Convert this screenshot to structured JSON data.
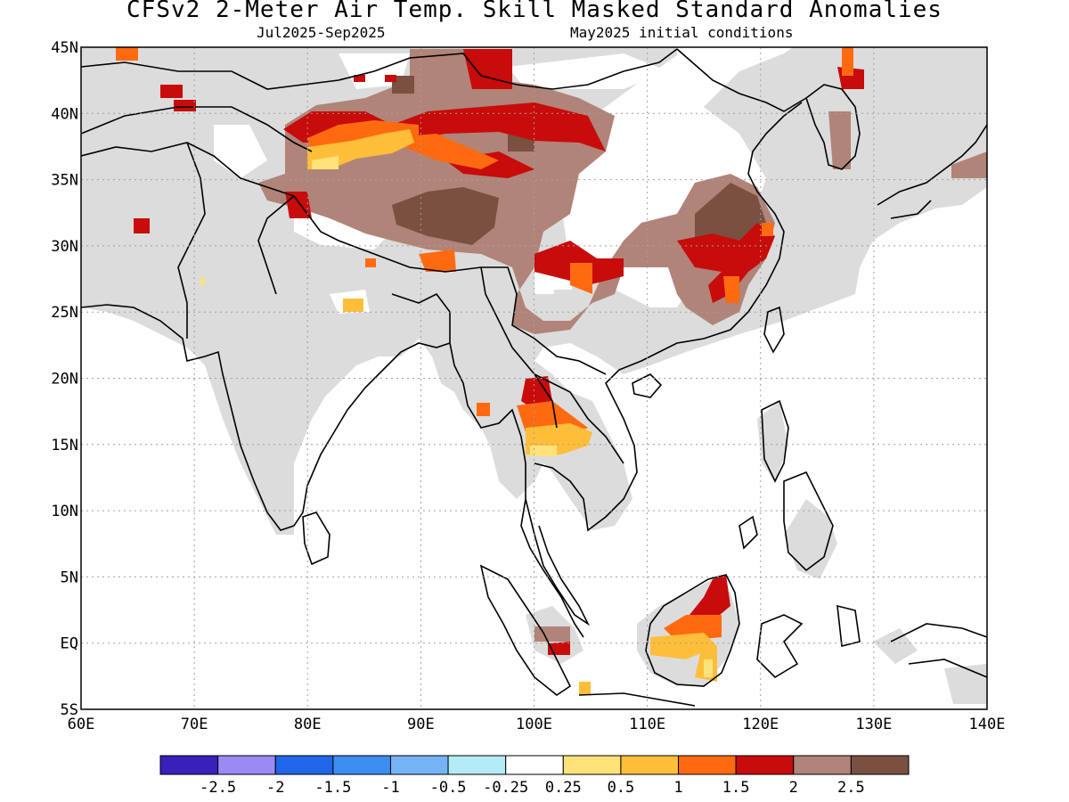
{
  "title": "CFSv2 2-Meter Air Temp. Skill Masked Standard Anomalies",
  "subtitle_left": "Jul2025-Sep2025",
  "subtitle_right": "May2025 initial conditions",
  "map": {
    "lon_range": [
      60,
      140
    ],
    "lat_range": [
      -5,
      45
    ],
    "x_ticks": [
      "60E",
      "70E",
      "80E",
      "90E",
      "100E",
      "110E",
      "120E",
      "130E",
      "140E"
    ],
    "y_ticks": [
      "45N",
      "40N",
      "35N",
      "30N",
      "25N",
      "20N",
      "15N",
      "10N",
      "5N",
      "EQ",
      "5S"
    ],
    "no_skill_color": "#dcdcdc",
    "coastline_color": "#000000",
    "grid": "dotted"
  },
  "colorbar": {
    "colors": [
      "#3a1fb8",
      "#9b8af5",
      "#2166e8",
      "#3c8ef0",
      "#74b4f5",
      "#b3ecf7",
      "#ffffff",
      "#fde27a",
      "#ffbe3a",
      "#ff6a10",
      "#c80b0b",
      "#b08478",
      "#7a5040"
    ],
    "labels": [
      "-2.5",
      "-2",
      "-1.5",
      "-1",
      "-0.5",
      "-0.25",
      "0.25",
      "0.5",
      "1",
      "1.5",
      "2",
      "2.5"
    ]
  }
}
